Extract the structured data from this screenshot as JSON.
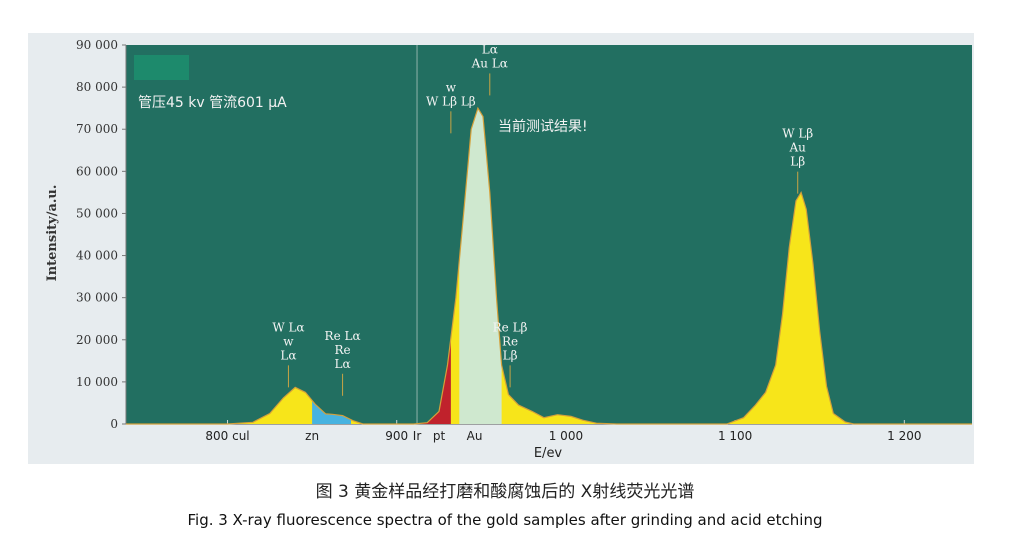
{
  "chart_data": {
    "type": "area",
    "title": "",
    "xlabel": "E/ev",
    "ylabel": "Intensity/a.u.",
    "ylim": [
      0,
      90000
    ],
    "xlim": [
      740,
      1240
    ],
    "yticks": [
      "0",
      "10 000",
      "20 000",
      "30 000",
      "40 000",
      "50 000",
      "60 000",
      "70 000",
      "80 000",
      "90 000"
    ],
    "xticks": [
      {
        "value": 800,
        "label": "800 cul",
        "color": "#222222"
      },
      {
        "value": 850,
        "label": "zn",
        "color": "#1f9fc7"
      },
      {
        "value": 900,
        "label": "900",
        "color": "#222222"
      },
      {
        "value": 912,
        "label": "Ir",
        "color": "#222222"
      },
      {
        "value": 925,
        "label": "pt",
        "color": "#c0263a"
      },
      {
        "value": 946,
        "label": "Au",
        "color": "#3cb54a"
      },
      {
        "value": 1000,
        "label": "1 000",
        "color": "#222222"
      },
      {
        "value": 1100,
        "label": "1 100",
        "color": "#222222"
      },
      {
        "value": 1200,
        "label": "1 200",
        "color": "#222222"
      }
    ],
    "background": "#226f61",
    "fill_colors": {
      "main": "#f7e51a",
      "zn": "#47b3e0",
      "pt": "#c0222c",
      "au": "#cfe8cf",
      "outline": "#d4a03a"
    },
    "series": [
      {
        "name": "",
        "points": [
          [
            740,
            0
          ],
          [
            800,
            0
          ],
          [
            815,
            400
          ],
          [
            825,
            2500
          ],
          [
            833,
            6200
          ],
          [
            840,
            8700
          ],
          [
            846,
            7500
          ],
          [
            852,
            4600
          ],
          [
            858,
            2400
          ],
          [
            862,
            2300
          ],
          [
            868,
            2000
          ],
          [
            874,
            800
          ],
          [
            880,
            0
          ],
          [
            910,
            0
          ],
          [
            918,
            300
          ],
          [
            925,
            3000
          ],
          [
            930,
            14000
          ],
          [
            935,
            30000
          ],
          [
            940,
            52000
          ],
          [
            944,
            70000
          ],
          [
            948,
            75000
          ],
          [
            951,
            73000
          ],
          [
            955,
            55000
          ],
          [
            959,
            30000
          ],
          [
            962,
            14000
          ],
          [
            966,
            7000
          ],
          [
            972,
            4500
          ],
          [
            980,
            3000
          ],
          [
            987,
            1500
          ],
          [
            995,
            2200
          ],
          [
            1003,
            1800
          ],
          [
            1010,
            900
          ],
          [
            1018,
            200
          ],
          [
            1030,
            0
          ],
          [
            1095,
            0
          ],
          [
            1105,
            1500
          ],
          [
            1112,
            4500
          ],
          [
            1118,
            7500
          ],
          [
            1124,
            14000
          ],
          [
            1128,
            26000
          ],
          [
            1132,
            42000
          ],
          [
            1136,
            53000
          ],
          [
            1139,
            55000
          ],
          [
            1142,
            51000
          ],
          [
            1146,
            38000
          ],
          [
            1150,
            22000
          ],
          [
            1154,
            9000
          ],
          [
            1158,
            2500
          ],
          [
            1165,
            500
          ],
          [
            1170,
            0
          ],
          [
            1240,
            0
          ]
        ]
      }
    ],
    "regions": [
      {
        "name": "zn",
        "x": [
          850,
          873
        ]
      },
      {
        "name": "pt",
        "x": [
          910,
          932
        ]
      },
      {
        "name": "au",
        "x": [
          937,
          962
        ]
      }
    ],
    "divider_x": 912,
    "annotations": [
      {
        "x": 836,
        "y": 22000,
        "lines": [
          "W Lα",
          "w",
          "Lα"
        ]
      },
      {
        "x": 868,
        "y": 20000,
        "lines": [
          "Re Lα",
          "Re",
          "Lα"
        ]
      },
      {
        "x": 932,
        "y": 79000,
        "lines": [
          "w",
          "W Lβ Lβ"
        ]
      },
      {
        "x": 955,
        "y": 88000,
        "lines": [
          "Lα",
          "Au Lα"
        ]
      },
      {
        "x": 967,
        "y": 22000,
        "lines": [
          "Re Lβ",
          "Re",
          "Lβ"
        ]
      },
      {
        "x": 1137,
        "y": 68000,
        "lines": [
          "W Lβ",
          "Au",
          "Lβ"
        ]
      }
    ],
    "legend_box_color": "#1d8a6c",
    "conditions": "管压45 kv  管流601 μA",
    "note": "当前测试结果!"
  },
  "caption": {
    "zh": "图 3   黄金样品经打磨和酸腐蚀后的 X射线荧光光谱",
    "en": "Fig. 3    X-ray fluorescence spectra of the gold samples after grinding and acid etching"
  }
}
